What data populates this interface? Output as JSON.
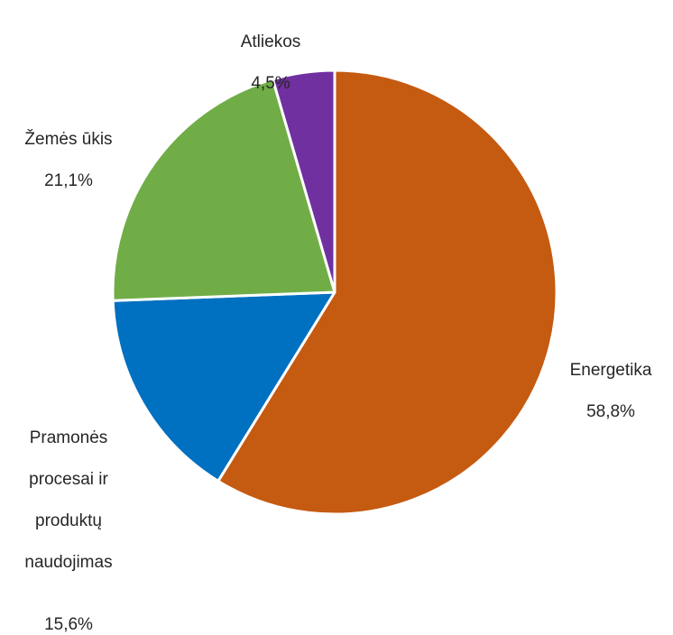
{
  "chart_data": {
    "type": "pie",
    "title": "",
    "slices": [
      {
        "label": "Energetika",
        "value": 58.8,
        "display": "58,8%",
        "color": "#C55A11"
      },
      {
        "label": "Pramonės procesai ir produktų naudojimas",
        "value": 15.6,
        "display": "15,6%",
        "color": "#0070C0"
      },
      {
        "label": "Žemės ūkis",
        "value": 21.1,
        "display": "21,1%",
        "color": "#70AD47"
      },
      {
        "label": "Atliekos",
        "value": 4.5,
        "display": "4,5%",
        "color": "#7030A0"
      }
    ],
    "start_angle": "12 o'clock",
    "direction": "clockwise",
    "legend": "none"
  }
}
